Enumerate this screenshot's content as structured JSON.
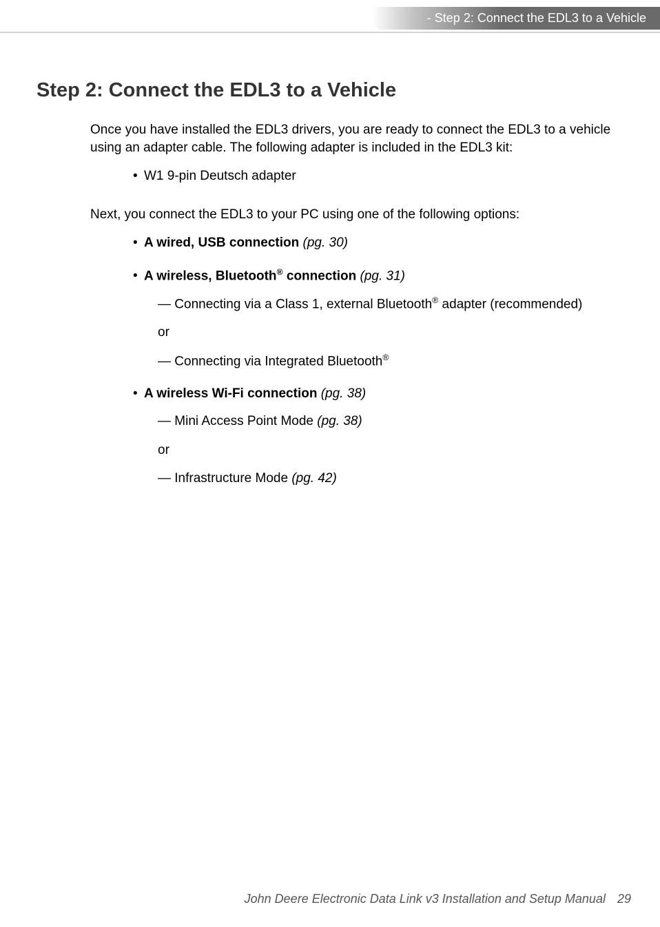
{
  "header": {
    "breadcrumb": "- Step 2: Connect the EDL3 to a Vehicle"
  },
  "section": {
    "title": "Step 2: Connect the EDL3 to a Vehicle",
    "intro": "Once you have installed the EDL3 drivers, you are ready to connect the EDL3 to a vehicle using an adapter cable. The following adapter is included in the EDL3 kit:",
    "adapter_item": "W1 9-pin Deutsch adapter",
    "next_para": "Next, you connect the EDL3 to your PC using one of the following options:",
    "options": {
      "usb": {
        "label": "A wired, USB connection",
        "page": "(pg. 30)"
      },
      "bluetooth": {
        "label_prefix": "A wireless, Bluetooth",
        "label_suffix": " connection",
        "page": "(pg. 31)",
        "sub1_prefix": "— Connecting via a Class 1, external Bluetooth",
        "sub1_suffix": " adapter (recommended)",
        "or": "or",
        "sub2_prefix": "— Connecting via Integrated Bluetooth"
      },
      "wifi": {
        "label": "A wireless Wi-Fi connection",
        "page": "(pg. 38)",
        "sub1": "— Mini Access Point Mode",
        "sub1_page": "(pg. 38)",
        "or": "or",
        "sub2": "— Infrastructure Mode",
        "sub2_page": "(pg. 42)"
      }
    }
  },
  "footer": {
    "title": "John Deere Electronic Data Link v3 Installation and Setup Manual",
    "page": "29"
  },
  "reg": "®"
}
